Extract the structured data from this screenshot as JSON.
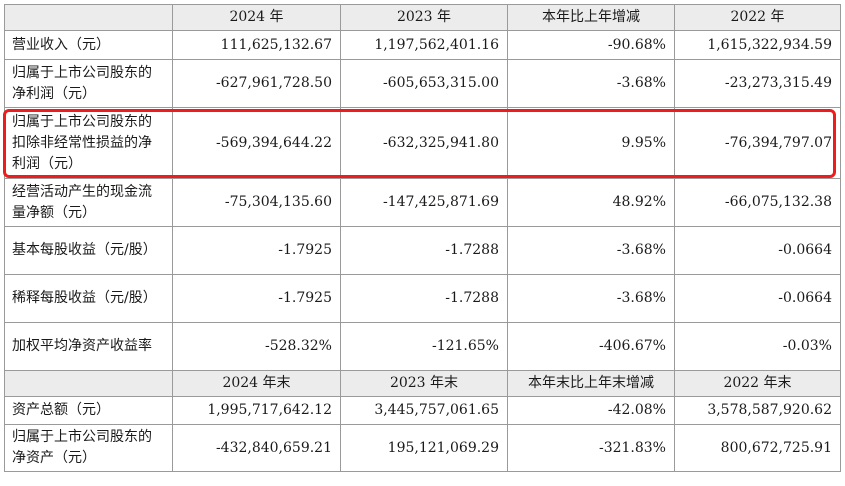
{
  "header_1": [
    "",
    "2024 年",
    "2023 年",
    "本年比上年增减",
    "2022 年"
  ],
  "rows_1": [
    {
      "label": "营业收入（元）",
      "values": [
        "111,625,132.67",
        "1,197,562,401.16",
        "-90.68%",
        "1,615,322,934.59"
      ]
    },
    {
      "label": "归属于上市公司股东的净利润（元）",
      "values": [
        "-627,961,728.50",
        "-605,653,315.00",
        "-3.68%",
        "-23,273,315.49"
      ]
    },
    {
      "label": "归属于上市公司股东的扣除非经常性损益的净利润（元）",
      "values": [
        "-569,394,644.22",
        "-632,325,941.80",
        "9.95%",
        "-76,394,797.07"
      ]
    },
    {
      "label": "经营活动产生的现金流量净额（元）",
      "values": [
        "-75,304,135.60",
        "-147,425,871.69",
        "48.92%",
        "-66,075,132.38"
      ]
    },
    {
      "label": "基本每股收益（元/股）",
      "values": [
        "-1.7925",
        "-1.7288",
        "-3.68%",
        "-0.0664"
      ]
    },
    {
      "label": "稀释每股收益（元/股）",
      "values": [
        "-1.7925",
        "-1.7288",
        "-3.68%",
        "-0.0664"
      ]
    },
    {
      "label": "加权平均净资产收益率",
      "values": [
        "-528.32%",
        "-121.65%",
        "-406.67%",
        "-0.03%"
      ]
    }
  ],
  "header_2": [
    "",
    "2024 年末",
    "2023 年末",
    "本年末比上年末增减",
    "2022 年末"
  ],
  "rows_2": [
    {
      "label": "资产总额（元）",
      "values": [
        "1,995,717,642.12",
        "3,445,757,061.65",
        "-42.08%",
        "3,578,587,920.62"
      ]
    },
    {
      "label": "归属于上市公司股东的净资产（元）",
      "values": [
        "-432,840,659.21",
        "195,121,069.29",
        "-321.83%",
        "800,672,725.91"
      ]
    }
  ],
  "highlight_color": "#ee1c1c"
}
